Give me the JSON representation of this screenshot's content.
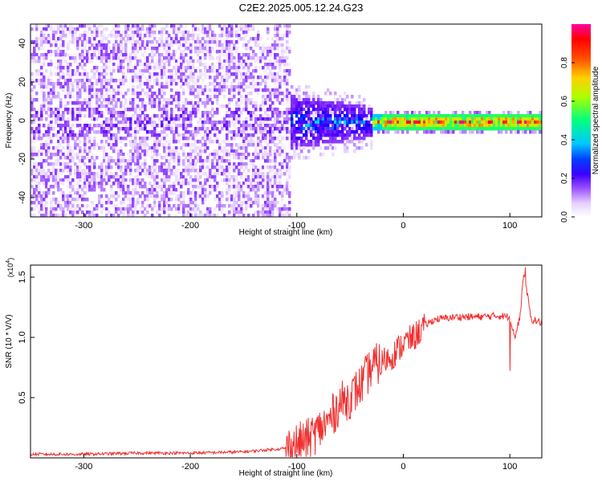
{
  "title": "C2E2.2025.005.12.24.G23",
  "chart_data": [
    {
      "type": "heatmap",
      "xlabel": "Height of straight line (km)",
      "ylabel": "Frequency (Hz)",
      "xlim": [
        -350,
        130
      ],
      "ylim": [
        -50,
        50
      ],
      "xticks": [
        -300,
        -200,
        -100,
        0,
        100
      ],
      "xtick_labels": [
        "-300",
        "-200",
        "-100",
        "0",
        "100"
      ],
      "yticks": [
        -40,
        -20,
        0,
        20,
        40
      ],
      "ytick_labels": [
        "-40",
        "-20",
        "0",
        "20",
        "40"
      ],
      "colorbar": {
        "label": "Normalized spectral amplitude",
        "range": [
          0,
          1
        ],
        "ticks": [
          0.0,
          0.2,
          0.4,
          0.6,
          0.8
        ],
        "tick_labels": [
          "0.0",
          "0.2",
          "0.4",
          "0.6",
          "0.8"
        ],
        "colors": [
          "#ffffff",
          "#e6d2ff",
          "#9b4dff",
          "#5a00ff",
          "#0000ff",
          "#00c8ff",
          "#00ff80",
          "#aaff00",
          "#ffd000",
          "#ff5000",
          "#ff0000",
          "#ff00a0"
        ]
      },
      "description_bands": [
        {
          "x_range": [
            -350,
            -110
          ],
          "freq_spread": 50,
          "level": 0.2
        },
        {
          "x_range": [
            -110,
            -30
          ],
          "freq_spread": 14,
          "level": 0.35
        },
        {
          "x_range": [
            -30,
            130
          ],
          "freq_spread": 3,
          "level": 0.8
        }
      ]
    },
    {
      "type": "line",
      "xlabel": "Height of straight line (km)",
      "ylabel": "SNR (10 * V/V)",
      "yscale_label": "(x10",
      "yscale_exp": "4",
      "yscale_close": ")",
      "xlim": [
        -350,
        130
      ],
      "ylim": [
        0,
        1.6
      ],
      "xticks": [
        -300,
        -200,
        -100,
        0,
        100
      ],
      "xtick_labels": [
        "-300",
        "-200",
        "-100",
        "0",
        "100"
      ],
      "yticks": [
        0.5,
        1.0,
        1.5
      ],
      "ytick_labels": [
        "0.5",
        "1.0",
        "1.5"
      ],
      "series": [
        {
          "name": "SNR",
          "color": "#f03030",
          "x": [
            -350,
            -300,
            -250,
            -200,
            -150,
            -110,
            -90,
            -70,
            -60,
            -50,
            -40,
            -30,
            -20,
            -10,
            0,
            10,
            20,
            30,
            50,
            70,
            90,
            100,
            105,
            110,
            113,
            120,
            130
          ],
          "y": [
            0.03,
            0.03,
            0.04,
            0.04,
            0.05,
            0.08,
            0.15,
            0.3,
            0.45,
            0.5,
            0.6,
            0.75,
            0.8,
            0.85,
            0.95,
            1.0,
            1.1,
            1.15,
            1.17,
            1.17,
            1.18,
            1.17,
            1.0,
            1.2,
            1.55,
            1.15,
            1.12
          ]
        }
      ]
    }
  ]
}
